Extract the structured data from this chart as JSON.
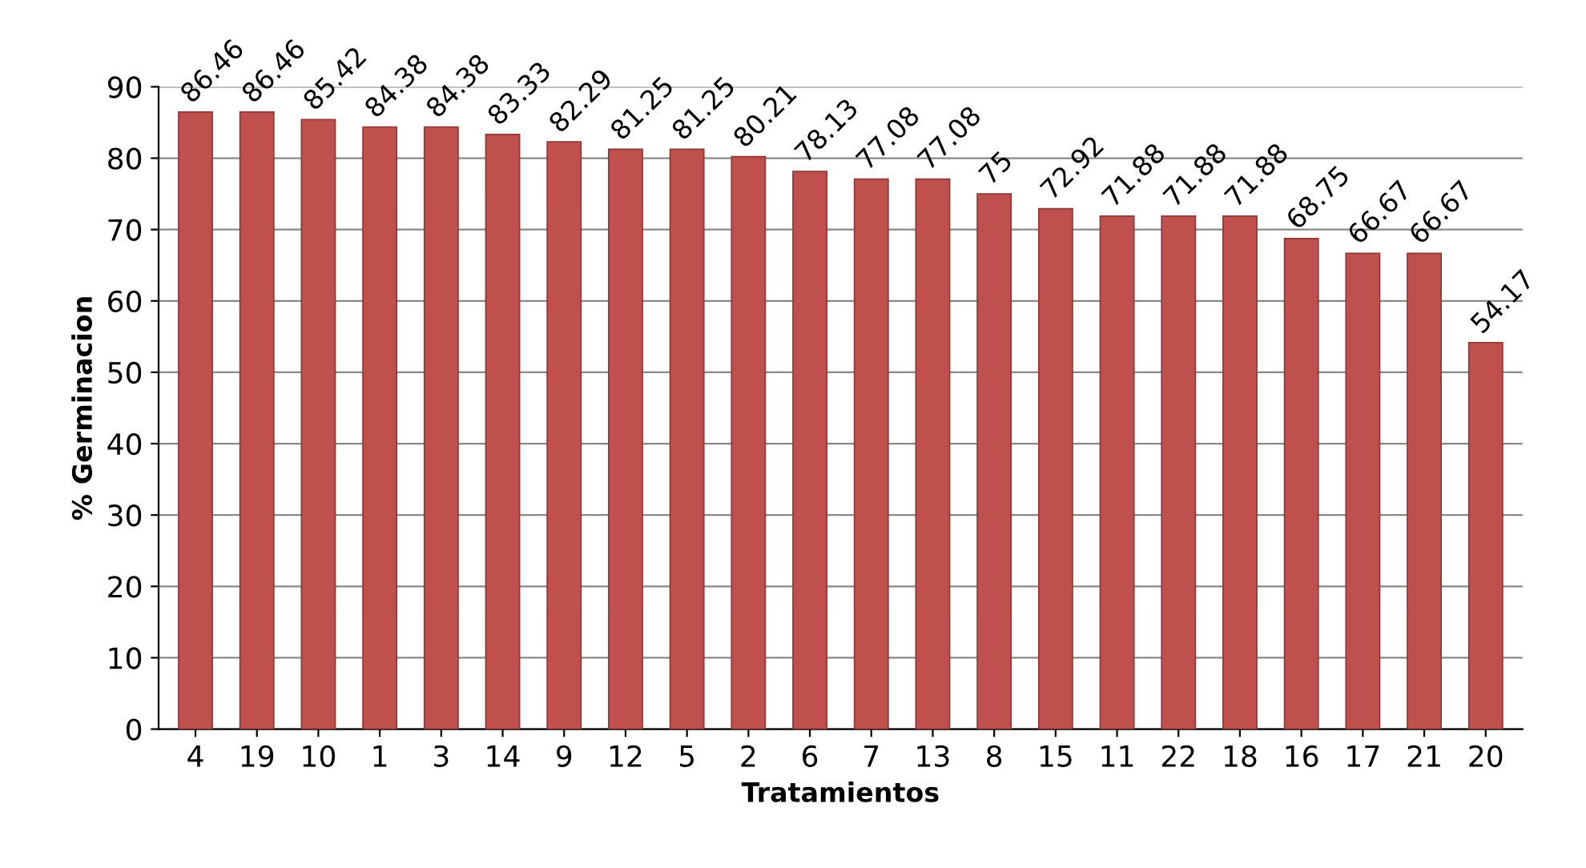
{
  "chart_data": {
    "type": "bar",
    "xlabel": "Tratamientos",
    "ylabel": "% Germinacion",
    "categories": [
      "4",
      "19",
      "10",
      "1",
      "3",
      "14",
      "9",
      "12",
      "5",
      "2",
      "6",
      "7",
      "13",
      "8",
      "15",
      "11",
      "22",
      "18",
      "16",
      "17",
      "21",
      "20"
    ],
    "values": [
      86.46,
      86.46,
      85.42,
      84.38,
      84.38,
      83.33,
      82.29,
      81.25,
      81.25,
      80.21,
      78.13,
      77.08,
      77.08,
      75,
      72.92,
      71.88,
      71.88,
      71.88,
      68.75,
      66.67,
      66.67,
      54.17
    ],
    "color": "#c0504d",
    "ylim": [
      0,
      90
    ],
    "yticks": [
      0,
      10,
      20,
      30,
      40,
      50,
      60,
      70,
      80,
      90
    ],
    "grid": "y",
    "data_labels": true
  }
}
